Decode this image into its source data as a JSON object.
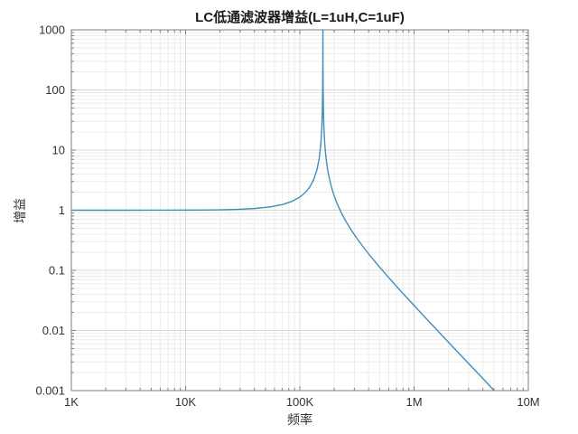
{
  "chart_data": {
    "type": "line",
    "title": "LC低通滤波器增益(L=1uH,C=1uF)",
    "xlabel": "频率",
    "ylabel": "增益",
    "x_scale": "log",
    "y_scale": "log",
    "xlim": [
      1000,
      10000000
    ],
    "ylim": [
      0.001,
      1000
    ],
    "x_ticks": [
      1000,
      10000,
      100000,
      1000000,
      10000000
    ],
    "x_tick_labels": [
      "1K",
      "10K",
      "100K",
      "1M",
      "10M"
    ],
    "y_ticks": [
      0.001,
      0.01,
      0.1,
      1,
      10,
      100,
      1000
    ],
    "y_tick_labels": [
      "0.001",
      "0.01",
      "0.1",
      "1",
      "10",
      "100",
      "1000"
    ],
    "grid": "major+minor",
    "legend": "none",
    "line_color": "#3f8fb5",
    "axis_color": "#7f7f7f",
    "major_grid_color": "#d9d9d9",
    "minor_grid_color": "#ececec",
    "tick_label_color": "#333333",
    "resonance_peak_hz": 159155,
    "series": [
      {
        "name": "gain",
        "points": [
          [
            1000,
            1.0
          ],
          [
            2000,
            1.0002
          ],
          [
            3000,
            1.0004
          ],
          [
            5000,
            1.001
          ],
          [
            7000,
            1.0019
          ],
          [
            10000,
            1.004
          ],
          [
            14000,
            1.0078
          ],
          [
            20000,
            1.016
          ],
          [
            28000,
            1.032
          ],
          [
            40000,
            1.0674
          ],
          [
            55000,
            1.1357
          ],
          [
            70000,
            1.2398
          ],
          [
            85000,
            1.3991
          ],
          [
            100000,
            1.6522
          ],
          [
            112000,
            1.981
          ],
          [
            122000,
            2.4255
          ],
          [
            132000,
            3.2038
          ],
          [
            141000,
            4.6483
          ],
          [
            148000,
            7.3929
          ],
          [
            153000,
            13.185
          ],
          [
            156000,
            25.476
          ],
          [
            157500,
            48.33
          ],
          [
            158300,
            93.33
          ],
          [
            158800,
            224.4
          ],
          [
            159000,
            513.6
          ],
          [
            159100,
            1000
          ],
          [
            159155,
            1000
          ],
          [
            159200,
            1000
          ],
          [
            159400,
            324.6
          ],
          [
            159700,
            145.8
          ],
          [
            160000,
            93.9
          ],
          [
            161000,
            42.88
          ],
          [
            162500,
            23.54
          ],
          [
            164000,
            16.18
          ],
          [
            166000,
            11.38
          ],
          [
            169000,
            7.84
          ],
          [
            172000,
            5.955
          ],
          [
            176000,
            4.486
          ],
          [
            180000,
            3.583
          ],
          [
            186000,
            2.734
          ],
          [
            192000,
            2.196
          ],
          [
            200000,
            1.727
          ],
          [
            210000,
            1.35
          ],
          [
            220000,
            1.098
          ],
          [
            235000,
            0.8473
          ],
          [
            250000,
            0.6815
          ],
          [
            270000,
            0.5325
          ],
          [
            290000,
            0.431
          ],
          [
            320000,
            0.3286
          ],
          [
            360000,
            0.2429
          ],
          [
            400000,
            0.1881
          ],
          [
            450000,
            0.143
          ],
          [
            500000,
            0.1128
          ],
          [
            600000,
            0.0757
          ],
          [
            700000,
            0.0545
          ],
          [
            800000,
            0.0412
          ],
          [
            1000000,
            0.026
          ],
          [
            1300000,
            0.0152
          ],
          [
            1600000,
            0.00999
          ],
          [
            2000000,
            0.00637
          ],
          [
            2500000,
            0.00407
          ],
          [
            3200000,
            0.00248
          ],
          [
            4000000,
            0.00159
          ],
          [
            5000000,
            0.00101
          ],
          [
            5040000,
            0.001
          ]
        ]
      }
    ]
  }
}
